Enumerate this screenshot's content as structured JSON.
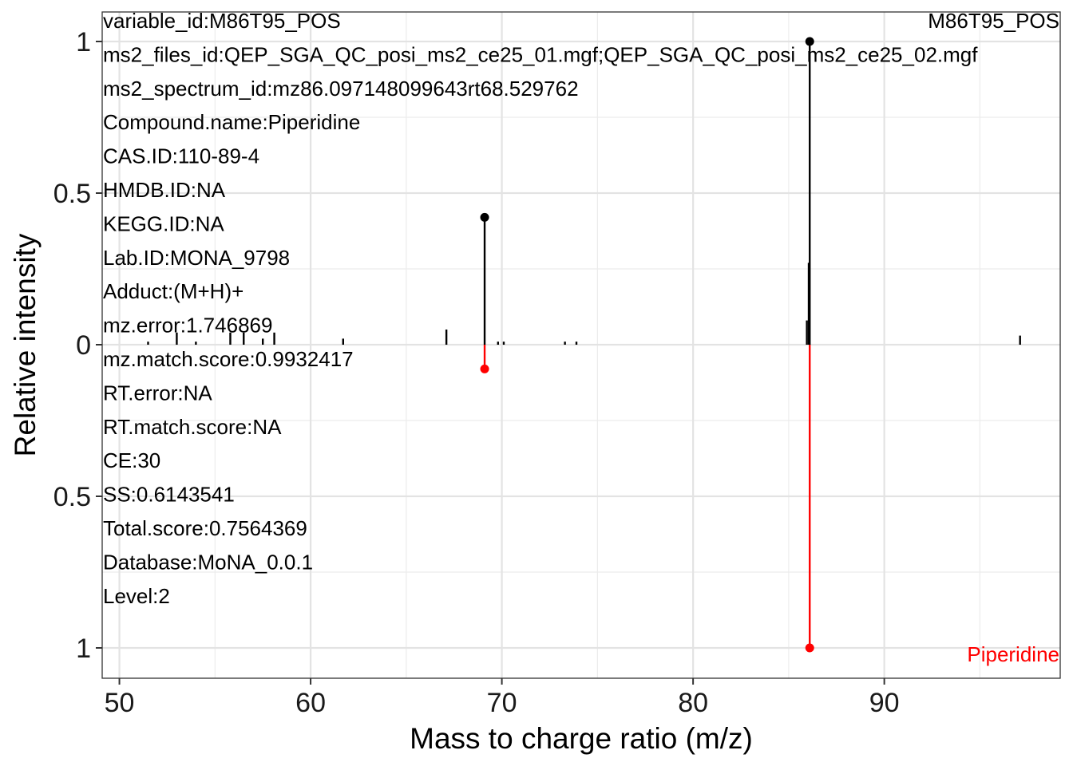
{
  "chart_data": {
    "type": "scatter",
    "subtype": "mirror-spectrum",
    "xlabel": "Mass to charge ratio (m/z)",
    "ylabel": "Relative intensity",
    "xlim": [
      49.1,
      99.2
    ],
    "ylim": [
      -1.1,
      1.1
    ],
    "x_ticks": [
      50,
      60,
      70,
      80,
      90
    ],
    "y_ticks": [
      {
        "value": 1,
        "label": "1"
      },
      {
        "value": 0.5,
        "label": "0.5"
      },
      {
        "value": 0,
        "label": "0"
      },
      {
        "value": -0.5,
        "label": "0.5"
      },
      {
        "value": -1,
        "label": "1"
      }
    ],
    "grid": true,
    "top_label": "M86T95_POS",
    "bottom_label": "Piperidine",
    "colors": {
      "experimental": "#000000",
      "reference": "#ff0000"
    },
    "info_lines": [
      "variable_id:M86T95_POS",
      "ms2_files_id:QEP_SGA_QC_posi_ms2_ce25_01.mgf;QEP_SGA_QC_posi_ms2_ce25_02.mgf",
      "ms2_spectrum_id:mz86.097148099643rt68.529762",
      "Compound.name:Piperidine",
      "CAS.ID:110-89-4",
      "HMDB.ID:NA",
      "KEGG.ID:NA",
      "Lab.ID:MONA_9798",
      "Adduct:(M+H)+",
      "mz.error:1.746869",
      "mz.match.score:0.9932417",
      "RT.error:NA",
      "RT.match.score:NA",
      "CE:30",
      "SS:0.6143541",
      "Total.score:0.7564369",
      "Database:MoNA_0.0.1",
      "Level:2"
    ],
    "series": [
      {
        "role": "experimental",
        "points": [
          {
            "x": 51.5,
            "y": 0.01
          },
          {
            "x": 53.0,
            "y": 0.04
          },
          {
            "x": 54.0,
            "y": 0.01
          },
          {
            "x": 55.8,
            "y": 0.04
          },
          {
            "x": 56.5,
            "y": 0.04
          },
          {
            "x": 57.5,
            "y": 0.02
          },
          {
            "x": 58.1,
            "y": 0.04
          },
          {
            "x": 61.7,
            "y": 0.02
          },
          {
            "x": 67.1,
            "y": 0.05
          },
          {
            "x": 69.1,
            "y": 0.42,
            "matched": true
          },
          {
            "x": 69.8,
            "y": 0.01
          },
          {
            "x": 70.1,
            "y": 0.01
          },
          {
            "x": 73.3,
            "y": 0.01
          },
          {
            "x": 73.9,
            "y": 0.01
          },
          {
            "x": 85.95,
            "y": 0.08
          },
          {
            "x": 86.05,
            "y": 0.27
          },
          {
            "x": 86.1,
            "y": 1.0,
            "matched": true
          },
          {
            "x": 97.1,
            "y": 0.03
          }
        ]
      },
      {
        "role": "reference",
        "name": "Piperidine",
        "points": [
          {
            "x": 69.1,
            "y": 0.08,
            "matched": true
          },
          {
            "x": 86.1,
            "y": 1.0,
            "matched": true
          }
        ]
      }
    ]
  }
}
